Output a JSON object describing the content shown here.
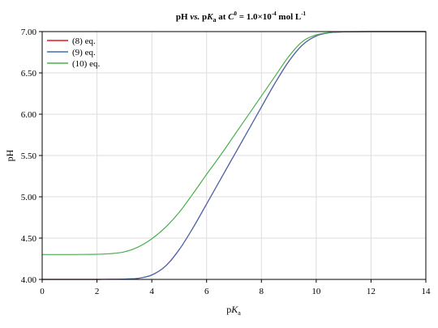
{
  "chart_data": {
    "type": "line",
    "title": {
      "prefix": "pH ",
      "vs": "vs.",
      "mid1": " p",
      "K": "K",
      "a": "a",
      "mid2": " at ",
      "C": "C",
      "zero": "0",
      "mid3": " = 1.0×10",
      "exp": "-4",
      "mid4": " mol L",
      "exp2": "-1"
    },
    "xlabel": {
      "p": "p",
      "K": "K",
      "a": "a"
    },
    "ylabel": "pH",
    "xlim": [
      0,
      14
    ],
    "ylim": [
      4.0,
      7.0
    ],
    "xticks": [
      "0",
      "2",
      "4",
      "6",
      "8",
      "10",
      "12",
      "14"
    ],
    "yticks": [
      "4.00",
      "4.50",
      "5.00",
      "5.50",
      "6.00",
      "6.50",
      "7.00"
    ],
    "grid": true,
    "legend_position": "top-left",
    "x": [
      0,
      0.5,
      1,
      1.5,
      2,
      2.5,
      3,
      3.5,
      4,
      4.5,
      5,
      5.5,
      6,
      6.5,
      7,
      7.5,
      8,
      8.5,
      9,
      9.5,
      10,
      10.5,
      11,
      11.5,
      12,
      12.5,
      13,
      13.5,
      14
    ],
    "series": [
      {
        "name": "(8) eq.",
        "color": "#e8141e",
        "values": [
          4.0,
          4.0,
          4.0,
          4.0,
          4.0,
          4.001,
          4.004,
          4.013,
          4.053,
          4.161,
          4.36,
          4.622,
          4.913,
          5.207,
          5.5,
          5.793,
          6.087,
          6.378,
          6.64,
          6.839,
          6.947,
          6.987,
          6.996,
          6.999,
          7.0,
          7.0,
          7.0,
          7.0,
          7.0
        ]
      },
      {
        "name": "(9) eq.",
        "color": "#3f6db5",
        "values": [
          4.0,
          4.0,
          4.0,
          4.0,
          4.0,
          4.001,
          4.004,
          4.013,
          4.053,
          4.161,
          4.36,
          4.622,
          4.913,
          5.207,
          5.5,
          5.793,
          6.087,
          6.378,
          6.64,
          6.839,
          6.947,
          6.987,
          6.996,
          6.999,
          7.0,
          7.0,
          7.0,
          7.0,
          7.0
        ]
      },
      {
        "name": "(10) eq.",
        "color": "#4caf50",
        "values": [
          4.301,
          4.301,
          4.301,
          4.302,
          4.304,
          4.312,
          4.334,
          4.392,
          4.491,
          4.63,
          4.812,
          5.036,
          5.272,
          5.5,
          5.74,
          5.98,
          6.22,
          6.46,
          6.7,
          6.88,
          6.96,
          6.99,
          6.998,
          7.0,
          7.0,
          7.0,
          7.0,
          7.0,
          7.0
        ]
      }
    ]
  }
}
